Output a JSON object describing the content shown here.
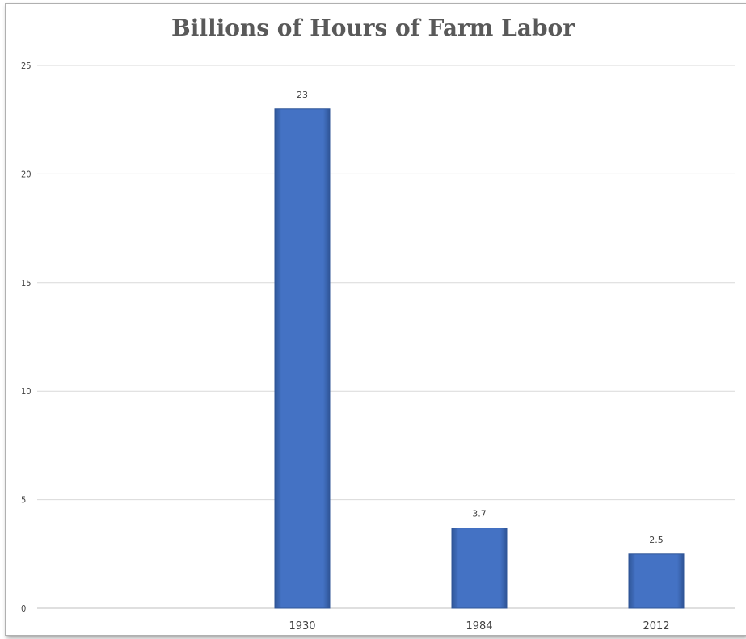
{
  "chart_data": {
    "type": "bar",
    "title": "Billions of Hours of Farm Labor",
    "categories": [
      "",
      "1930",
      "1984",
      "2012"
    ],
    "values": [
      null,
      23,
      3.7,
      2.5
    ],
    "data_labels": [
      "",
      "23",
      "3.7",
      "2.5"
    ],
    "xlabel": "",
    "ylabel": "",
    "ylim": [
      0,
      25
    ],
    "yticks": [
      0,
      5,
      10,
      15,
      20,
      25
    ],
    "grid": true,
    "legend": "none",
    "colors": {
      "bar_fill": "#4472c4",
      "bar_edge": "#2f5597",
      "gridline": "#d9d9d9",
      "title": "#595959"
    }
  }
}
